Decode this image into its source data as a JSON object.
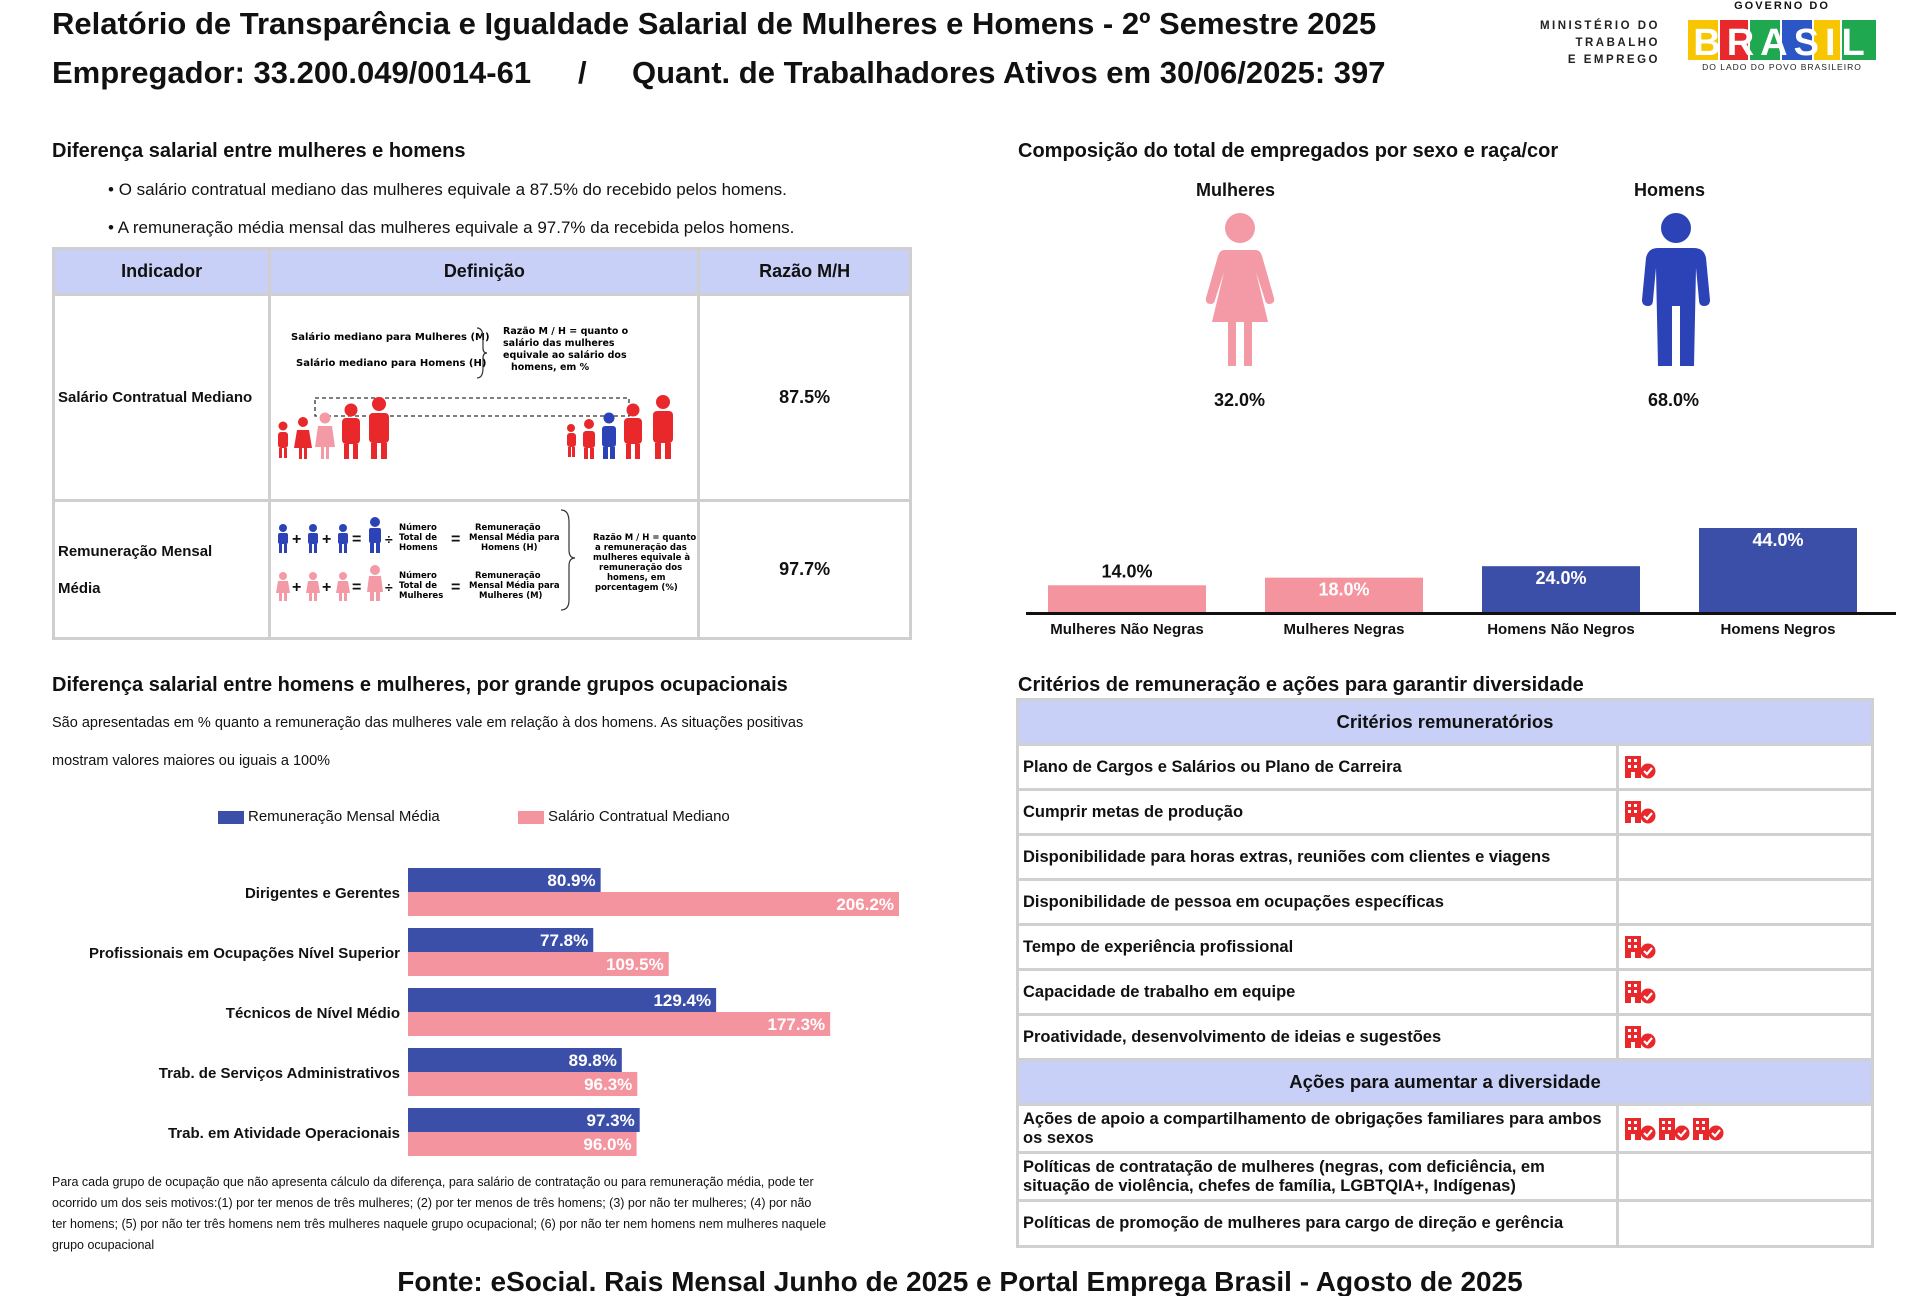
{
  "header": {
    "title": "Relatório de Transparência e Igualdade Salarial de Mulheres e Homens - 2º Semestre 2025",
    "employer": "Empregador: 33.200.049/0014-61",
    "separator": "/",
    "workers": "Quant. de Trabalhadores Ativos em 30/06/2025: 397"
  },
  "logos": {
    "ministry": [
      "MINISTÉRIO DO",
      "TRABALHO",
      "E EMPREGO"
    ],
    "gov_top": "GOVERNO DO",
    "gov_main": "BRASIL",
    "gov_sub": "DO LADO DO POVO BRASILEIRO"
  },
  "wage_gap": {
    "title": "Diferença salarial entre mulheres e homens",
    "bullets": [
      "O salário contratual mediano das mulheres equivale a 87.5% do recebido pelos homens.",
      "A remuneração média mensal das mulheres equivale a 97.7% da recebida pelos homens."
    ],
    "table": {
      "headers": [
        "Indicador",
        "Definição",
        "Razão M/H"
      ],
      "rows": [
        {
          "indicator": "Salário Contratual Mediano",
          "ratio": "87.5%",
          "def_labels": [
            "Salário mediano para Mulheres (M)",
            "Salário mediano para Homens (H)"
          ],
          "def_note": [
            "Razão M / H = quanto o",
            "salário das mulheres",
            "equivale ao salário dos",
            "homens, em %"
          ]
        },
        {
          "indicator_lines": [
            "Remuneração Mensal",
            "Média"
          ],
          "ratio": "97.7%",
          "def_men": [
            "Número",
            "Total de",
            "Homens"
          ],
          "def_men_result": [
            "Remuneração",
            "Mensal Média para",
            "Homens (H)"
          ],
          "def_women": [
            "Número",
            "Total de",
            "Mulheres"
          ],
          "def_women_result": [
            "Remuneração",
            "Mensal Média para",
            "Mulheres (M)"
          ],
          "def_note": [
            "Razão M / H = quanto",
            "a remuneração das",
            "mulheres equivale à",
            "remuneração dos",
            "homens, em",
            "porcentagem (%)"
          ]
        }
      ]
    }
  },
  "composition": {
    "title": "Composição do total de empregados por sexo e raça/cor",
    "women_label": "Mulheres",
    "men_label": "Homens",
    "women_pct": "32.0%",
    "men_pct": "68.0%"
  },
  "colors": {
    "blue": "#3b4fa8",
    "pink": "#f4949f",
    "red": "#e8282b",
    "icon_blue": "#2c43b8",
    "icon_pink": "#f49aa6",
    "header_bg": "#c8d0f8"
  },
  "chart_data": [
    {
      "type": "bar",
      "title": "Composição do total de empregados por sexo e raça/cor",
      "categories": [
        "Mulheres Não Negras",
        "Mulheres Negras",
        "Homens Não Negros",
        "Homens Negros"
      ],
      "values": [
        14.0,
        18.0,
        24.0,
        44.0
      ],
      "labels": [
        "14.0%",
        "18.0%",
        "24.0%",
        "44.0%"
      ],
      "colors": [
        "#f4949f",
        "#f4949f",
        "#3b4fa8",
        "#3b4fa8"
      ],
      "ylim": [
        0,
        44
      ]
    },
    {
      "type": "bar",
      "orientation": "horizontal",
      "title": "Diferença salarial entre homens e mulheres, por grande grupos ocupacionais",
      "categories": [
        "Dirigentes e Gerentes",
        "Profissionais em Ocupações Nível Superior",
        "Técnicos de Nível Médio",
        "Trab. de Serviços Administrativos",
        "Trab. em Atividade Operacionais"
      ],
      "series": [
        {
          "name": "Remuneração Mensal Média",
          "values": [
            80.9,
            77.8,
            129.4,
            89.8,
            97.3
          ],
          "labels": [
            "80.9%",
            "77.8%",
            "129.4%",
            "89.8%",
            "97.3%"
          ],
          "color": "#3b4fa8"
        },
        {
          "name": "Salário Contratual Mediano",
          "values": [
            206.2,
            109.5,
            177.3,
            96.3,
            96.0
          ],
          "labels": [
            "206.2%",
            "109.5%",
            "177.3%",
            "96.3%",
            "96.0%"
          ],
          "color": "#f4949f"
        }
      ],
      "xlim": [
        0,
        220
      ]
    }
  ],
  "occupational": {
    "title": "Diferença salarial entre homens e mulheres, por grande grupos ocupacionais",
    "desc1": "São apresentadas em % quanto a remuneração das mulheres vale em relação à dos homens. As situações positivas",
    "desc2": "mostram valores maiores ou iguais a 100%",
    "footnote": [
      "Para cada grupo de ocupação que não apresenta cálculo da diferença, para salário de contratação ou para remuneração média, pode ter",
      "ocorrido um dos seis motivos:(1) por ter menos de três mulheres; (2) por ter menos de três homens; (3) por não ter mulheres; (4) por não",
      "ter homens; (5) por não ter três homens nem três mulheres naquele grupo ocupacional; (6) por não ter nem homens nem mulheres naquele",
      "grupo ocupacional"
    ]
  },
  "criteria": {
    "title": "Critérios de remuneração e ações para garantir diversidade",
    "header1": "Critérios remuneratórios",
    "rows1": [
      {
        "label": "Plano de Cargos e Salários ou Plano de Carreira",
        "icons": 1
      },
      {
        "label": "Cumprir metas de produção",
        "icons": 1
      },
      {
        "label": "Disponibilidade para horas extras, reuniões com clientes e viagens",
        "icons": 0
      },
      {
        "label": "Disponibilidade de pessoa em ocupações específicas",
        "icons": 0
      },
      {
        "label": "Tempo de experiência profissional",
        "icons": 1
      },
      {
        "label": "Capacidade de trabalho em equipe",
        "icons": 1
      },
      {
        "label": "Proatividade, desenvolvimento de ideias e sugestões",
        "icons": 1
      }
    ],
    "header2": "Ações para aumentar a diversidade",
    "rows2": [
      {
        "label": "Ações de apoio a compartilhamento de obrigações familiares para ambos os sexos",
        "icons": 3
      },
      {
        "label": "Políticas de contratação de mulheres (negras, com deficiência, em situação de violência, chefes de família, LGBTQIA+, Indígenas)",
        "icons": 0
      },
      {
        "label": "Políticas de promoção de mulheres para cargo de direção e gerência",
        "icons": 0
      }
    ]
  },
  "footer": {
    "source": "Fonte: eSocial. Rais Mensal Junho de 2025 e Portal Emprega Brasil - Agosto de 2025"
  }
}
